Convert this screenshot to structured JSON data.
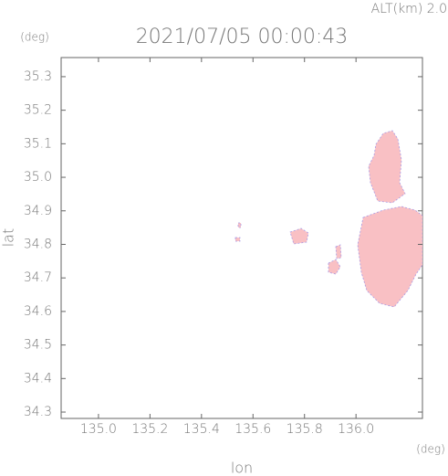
{
  "chart_data": {
    "type": "map",
    "title": "2021/07/05 00:00:43",
    "subtitle": "ALT(km)  2.0",
    "x_label": "lon",
    "y_label": "lat",
    "x_unit": "(deg)",
    "y_unit": "(deg)",
    "xlim": [
      134.855,
      136.258
    ],
    "ylim": [
      34.281,
      35.357
    ],
    "xticks": [
      {
        "value": 135.0,
        "label": "135.0"
      },
      135.2,
      135.4,
      135.6,
      135.8,
      {
        "value": 136.0,
        "label": "136.0"
      }
    ],
    "yticks": [
      34.3,
      34.4,
      34.5,
      34.6,
      34.7,
      34.8,
      34.9,
      {
        "value": 35.0,
        "label": "35.0"
      },
      35.1,
      35.2,
      35.3
    ]
  }
}
